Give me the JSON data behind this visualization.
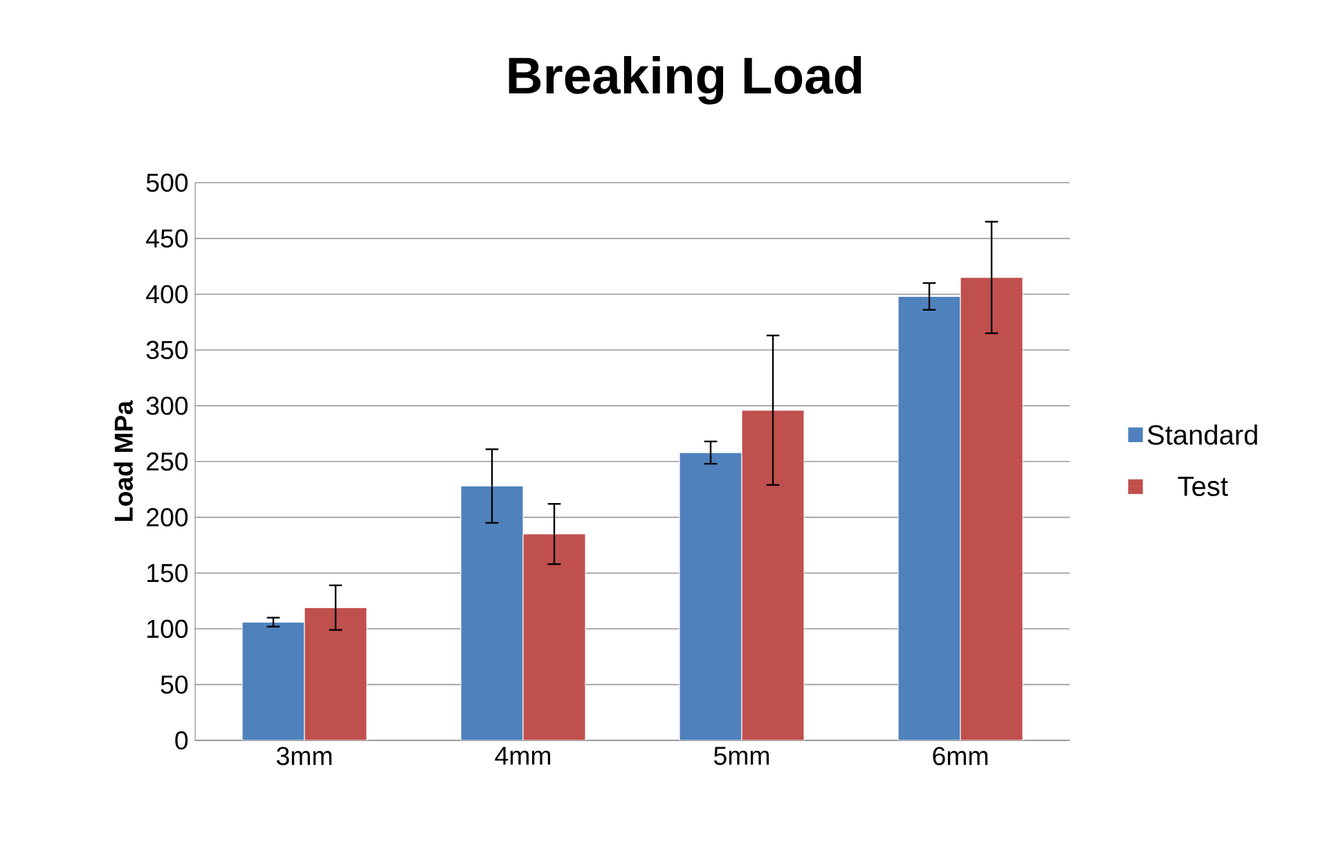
{
  "chart_data": {
    "type": "bar",
    "title": "Breaking Load",
    "ylabel": "Load MPa",
    "categories": [
      "3mm",
      "4mm",
      "5mm",
      "6mm"
    ],
    "series": [
      {
        "name": "Standard",
        "color": "#4f81bd",
        "values": [
          106,
          228,
          258,
          398
        ],
        "errors": [
          4,
          33,
          10,
          12
        ]
      },
      {
        "name": "Test",
        "color": "#c0504d",
        "values": [
          119,
          185,
          296,
          415
        ],
        "errors": [
          20,
          27,
          67,
          50
        ]
      }
    ],
    "ylim": [
      0,
      500
    ],
    "yticks": [
      0,
      50,
      100,
      150,
      200,
      250,
      300,
      350,
      400,
      450,
      500
    ],
    "grid": "y",
    "legend": "right"
  }
}
